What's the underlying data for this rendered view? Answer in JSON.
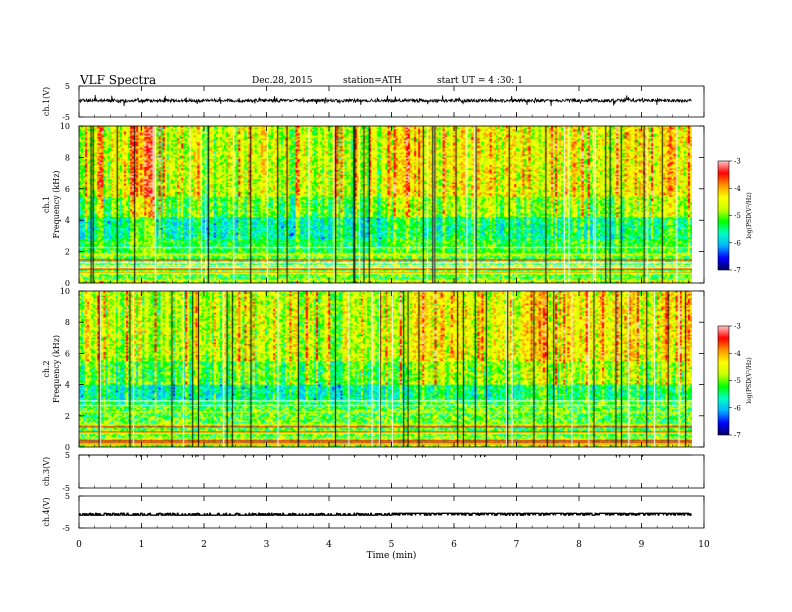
{
  "header": {
    "title": "VLF  Spectra",
    "date": "Dec.28, 2015",
    "station": "station=ATH",
    "start_ut": "start  UT  =   4  :30: 1"
  },
  "chart_data": {
    "type": "heatmap",
    "x_axis": {
      "label": "Time  (min)",
      "range": [
        0,
        10
      ],
      "ticks": [
        0,
        1,
        2,
        3,
        4,
        5,
        6,
        7,
        8,
        9,
        10
      ],
      "data_end": 9.8
    },
    "panels": [
      {
        "id": "ch1-waveform",
        "type": "line",
        "ylabel": "ch.1(V)",
        "ylim": [
          -5,
          5
        ],
        "ytick_labels": [
          "5",
          "-5"
        ],
        "baseline": 0.3,
        "noise_amplitude": 0.5,
        "spikes": "frequent short spikes to about ±1.5 V"
      },
      {
        "id": "ch1-spectrogram",
        "type": "heatmap",
        "ylabel_channel": "ch.1",
        "ylabel": "Frequency  (kHz)",
        "ylim": [
          0,
          10
        ],
        "yticks": [
          0,
          2,
          4,
          6,
          8,
          10
        ],
        "features": {
          "strong_band_kHz": [
            0.1,
            1.8
          ],
          "dark_band_kHz": [
            2.8,
            4.2
          ],
          "broadband_sferics": "vertical streaks across 0-10 kHz, densest after 5 min"
        },
        "colorbar": {
          "label": "log(PSD(V²/Hz)",
          "range": [
            -7,
            -3
          ],
          "ticks": [
            "-3",
            "-4",
            "-5",
            "-6",
            "-7"
          ]
        }
      },
      {
        "id": "ch2-spectrogram",
        "type": "heatmap",
        "ylabel_channel": "ch.2",
        "ylabel": "Frequency  (kHz)",
        "ylim": [
          0,
          10
        ],
        "yticks": [
          0,
          2,
          4,
          6,
          8,
          10
        ],
        "features": {
          "strong_band_kHz": [
            0.1,
            2.6
          ],
          "dark_band_kHz": [
            3.0,
            4.0
          ],
          "broadband_sferics": "vertical streaks across 0-10 kHz"
        },
        "colorbar": {
          "label": "log(PSD(V²/Hz)",
          "range": [
            -7,
            -3
          ],
          "ticks": [
            "-3",
            "-4",
            "-5",
            "-6",
            "-7"
          ]
        }
      },
      {
        "id": "ch3-waveform",
        "type": "line",
        "ylabel": "ch.3(V)",
        "ylim": [
          -5,
          5
        ],
        "ytick_labels": [
          "5",
          "-5"
        ],
        "baseline": 5
      },
      {
        "id": "ch4-waveform",
        "type": "line",
        "ylabel": "ch.4(V)",
        "ylim": [
          -5,
          5
        ],
        "ytick_labels": [
          "5",
          "-5"
        ],
        "baseline": -1,
        "pulses": "short rectangular pulses of about 0.6 V, becoming nearly continuous after 5 min"
      }
    ],
    "colormap": [
      "#000064",
      "#0000ff",
      "#00b4ff",
      "#00ffc8",
      "#00ff00",
      "#c8ff00",
      "#ffff00",
      "#ff9600",
      "#ff0000",
      "#ffc8c8"
    ]
  }
}
